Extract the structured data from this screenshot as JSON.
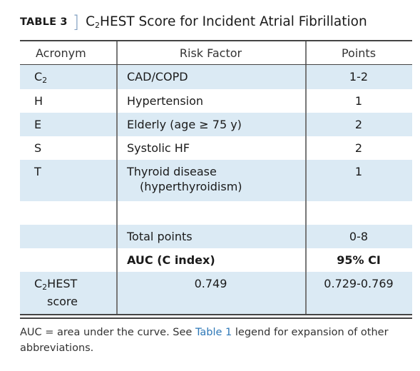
{
  "title": {
    "label": "TABLE 3",
    "caption_prefix": "C",
    "caption_sub": "2",
    "caption_rest": "HEST Score for Incident Atrial Fibrillation"
  },
  "columns": [
    "Acronym",
    "Risk Factor",
    "Points"
  ],
  "rows": [
    {
      "acronym_main": "C",
      "acronym_sub": "2",
      "factor": "CAD/COPD",
      "factor_line2": "",
      "points": "1-2"
    },
    {
      "acronym_main": "H",
      "acronym_sub": "",
      "factor": "Hypertension",
      "factor_line2": "",
      "points": "1"
    },
    {
      "acronym_main": "E",
      "acronym_sub": "",
      "factor": "Elderly (age ≥ 75 y)",
      "factor_line2": "",
      "points": "2"
    },
    {
      "acronym_main": "S",
      "acronym_sub": "",
      "factor": "Systolic HF",
      "factor_line2": "",
      "points": "2"
    },
    {
      "acronym_main": "T",
      "acronym_sub": "",
      "factor": "Thyroid disease",
      "factor_line2": "(hyperthyroidism)",
      "points": "1"
    }
  ],
  "total": {
    "label": "Total points",
    "points": "0-8"
  },
  "auc_header": {
    "label": "AUC (C index)",
    "ci_label": "95% CI"
  },
  "score": {
    "acronym_main": "C",
    "acronym_sub": "2",
    "acronym_rest": "HEST",
    "line2": "score",
    "auc": "0.749",
    "ci": "0.729-0.769"
  },
  "footnote": {
    "part1": "AUC = area under the curve. See ",
    "link": "Table 1",
    "part2": " legend for expansion of other abbreviations."
  },
  "colors": {
    "shade": "#dbeaf4",
    "link": "#2e78b7",
    "bracket": "#7d9cbf"
  }
}
